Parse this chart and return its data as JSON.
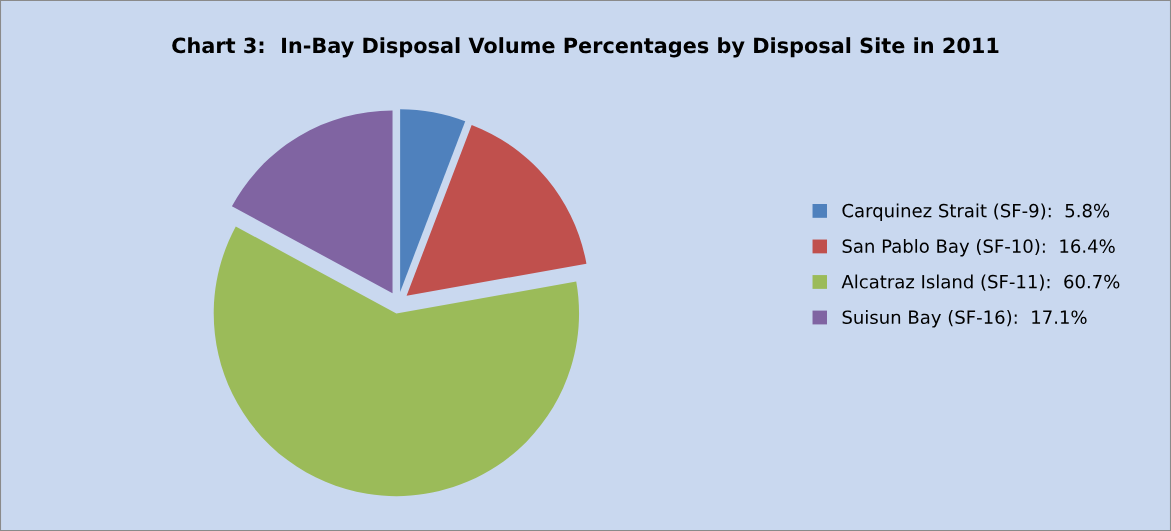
{
  "chart_data": {
    "type": "pie",
    "title": "Chart 3:  In-Bay Disposal Volume Percentages by Disposal Site in 2011",
    "categories": [
      "Carquinez Strait (SF-9):  5.8%",
      "San Pablo Bay (SF-10):  16.4%",
      "Alcatraz Island (SF-11):  60.7%",
      "Suisun Bay (SF-16):  17.1%"
    ],
    "values": [
      5.8,
      16.4,
      60.7,
      17.1
    ],
    "colors": [
      "#4f81bd",
      "#c0504d",
      "#9bbb59",
      "#8064a2"
    ],
    "legend": "right"
  }
}
